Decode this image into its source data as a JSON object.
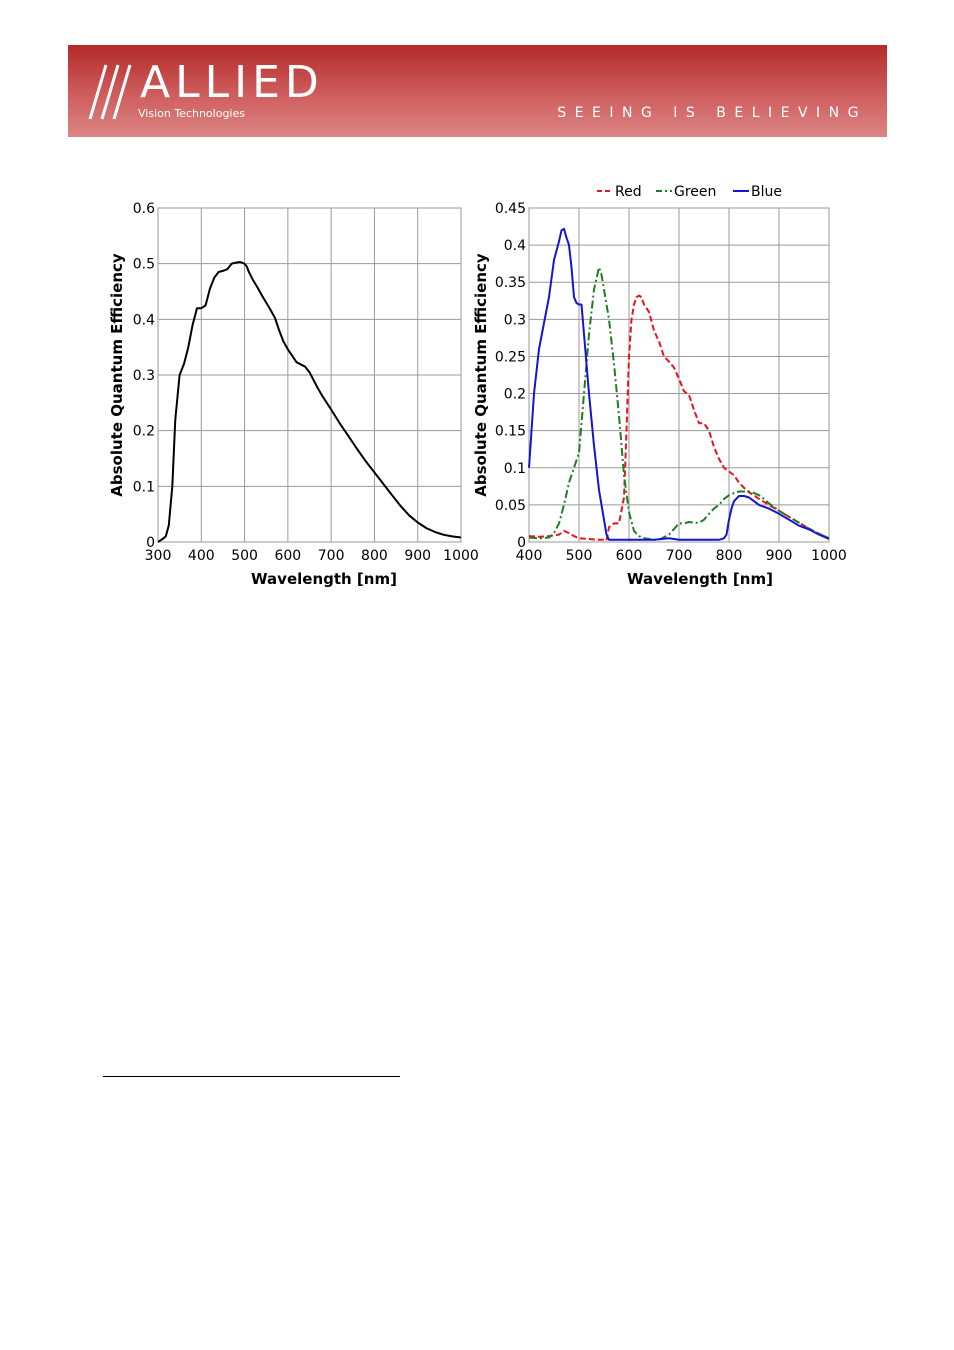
{
  "header": {
    "brand": "ALLIED",
    "subbrand": "Vision Technologies",
    "tagline": "SEEING IS BELIEVING",
    "colors": {
      "banner_dark": "#b52a2a",
      "banner_light": "#dc8585",
      "text": "#ffffff"
    }
  },
  "chart_data": [
    {
      "type": "line",
      "title": "",
      "xlabel": "Wavelength [nm]",
      "ylabel": "Absolute Quantum Efficiency",
      "xlim": [
        300,
        1000
      ],
      "ylim": [
        0,
        0.6
      ],
      "x_ticks": [
        "300",
        "400",
        "500",
        "600",
        "700",
        "800",
        "900",
        "1000"
      ],
      "y_ticks": [
        "0",
        "0.1",
        "0.2",
        "0.3",
        "0.4",
        "0.5",
        "0.6"
      ],
      "grid": true,
      "legend": "none",
      "series": [
        {
          "color": "#000000",
          "style": "solid",
          "x": [
            300,
            310,
            318,
            325,
            333,
            340,
            350,
            360,
            370,
            380,
            390,
            395,
            400,
            410,
            420,
            430,
            440,
            450,
            460,
            470,
            480,
            490,
            500,
            505,
            510,
            520,
            530,
            540,
            550,
            560,
            570,
            580,
            590,
            600,
            620,
            640,
            650,
            660,
            670,
            680,
            700,
            720,
            740,
            760,
            780,
            800,
            820,
            840,
            860,
            880,
            900,
            920,
            940,
            960,
            980,
            1000
          ],
          "values": [
            0.0,
            0.005,
            0.01,
            0.03,
            0.1,
            0.22,
            0.3,
            0.32,
            0.35,
            0.39,
            0.42,
            0.42,
            0.42,
            0.425,
            0.455,
            0.475,
            0.485,
            0.487,
            0.49,
            0.5,
            0.502,
            0.503,
            0.5,
            0.495,
            0.485,
            0.47,
            0.457,
            0.443,
            0.43,
            0.417,
            0.403,
            0.38,
            0.36,
            0.346,
            0.323,
            0.315,
            0.305,
            0.29,
            0.275,
            0.262,
            0.238,
            0.213,
            0.19,
            0.167,
            0.145,
            0.125,
            0.105,
            0.085,
            0.065,
            0.048,
            0.035,
            0.025,
            0.018,
            0.013,
            0.01,
            0.008
          ]
        }
      ]
    },
    {
      "type": "line",
      "title": "",
      "xlabel": "Wavelength [nm]",
      "ylabel": "Absolute Quantum Efficiency",
      "xlim": [
        400,
        1000
      ],
      "ylim": [
        0,
        0.45
      ],
      "x_ticks": [
        "400",
        "500",
        "600",
        "700",
        "800",
        "900",
        "1000"
      ],
      "y_ticks": [
        "0",
        "0.05",
        "0.1",
        "0.15",
        "0.2",
        "0.25",
        "0.3",
        "0.35",
        "0.4",
        "0.45"
      ],
      "grid": true,
      "legend": "top",
      "series": [
        {
          "name": "Red",
          "color": "#e8141c",
          "style": "dashed",
          "x": [
            400,
            420,
            440,
            460,
            470,
            480,
            490,
            500,
            520,
            540,
            550,
            555,
            560,
            570,
            580,
            590,
            595,
            600,
            605,
            610,
            615,
            620,
            625,
            630,
            640,
            650,
            660,
            670,
            680,
            690,
            700,
            710,
            720,
            730,
            740,
            750,
            760,
            770,
            780,
            790,
            800,
            810,
            820,
            830,
            840,
            850,
            860,
            880,
            900,
            920,
            940,
            960,
            980,
            1000
          ],
          "values": [
            0.008,
            0.007,
            0.008,
            0.01,
            0.015,
            0.012,
            0.008,
            0.005,
            0.004,
            0.003,
            0.003,
            0.002,
            0.02,
            0.025,
            0.025,
            0.06,
            0.15,
            0.25,
            0.3,
            0.32,
            0.33,
            0.332,
            0.33,
            0.32,
            0.31,
            0.285,
            0.27,
            0.25,
            0.243,
            0.235,
            0.22,
            0.203,
            0.198,
            0.178,
            0.16,
            0.16,
            0.15,
            0.128,
            0.112,
            0.1,
            0.095,
            0.09,
            0.08,
            0.073,
            0.067,
            0.063,
            0.058,
            0.05,
            0.042,
            0.034,
            0.026,
            0.018,
            0.011,
            0.005
          ]
        },
        {
          "name": "Green",
          "color": "#1e7d1e",
          "style": "dashdot",
          "x": [
            400,
            420,
            440,
            450,
            460,
            470,
            480,
            490,
            500,
            510,
            520,
            530,
            540,
            545,
            550,
            560,
            570,
            580,
            590,
            600,
            610,
            620,
            630,
            640,
            650,
            660,
            680,
            700,
            710,
            720,
            730,
            740,
            750,
            760,
            770,
            780,
            790,
            800,
            810,
            820,
            830,
            840,
            850,
            860,
            870,
            880,
            900,
            920,
            940,
            960,
            980,
            1000
          ],
          "values": [
            0.006,
            0.005,
            0.006,
            0.012,
            0.025,
            0.05,
            0.08,
            0.1,
            0.12,
            0.2,
            0.28,
            0.34,
            0.37,
            0.36,
            0.34,
            0.3,
            0.24,
            0.17,
            0.09,
            0.04,
            0.015,
            0.008,
            0.005,
            0.004,
            0.003,
            0.003,
            0.01,
            0.025,
            0.025,
            0.027,
            0.026,
            0.026,
            0.03,
            0.038,
            0.045,
            0.05,
            0.058,
            0.063,
            0.066,
            0.068,
            0.068,
            0.068,
            0.066,
            0.063,
            0.058,
            0.052,
            0.042,
            0.034,
            0.026,
            0.018,
            0.011,
            0.005
          ]
        },
        {
          "name": "Blue",
          "color": "#1414d2",
          "style": "solid",
          "x": [
            400,
            410,
            420,
            440,
            450,
            460,
            465,
            470,
            475,
            480,
            485,
            490,
            495,
            500,
            505,
            510,
            520,
            530,
            540,
            550,
            555,
            560,
            600,
            650,
            680,
            700,
            720,
            740,
            760,
            780,
            790,
            795,
            800,
            805,
            810,
            820,
            830,
            840,
            850,
            860,
            880,
            900,
            920,
            940,
            960,
            980,
            1000
          ],
          "values": [
            0.1,
            0.2,
            0.26,
            0.33,
            0.38,
            0.405,
            0.42,
            0.422,
            0.41,
            0.4,
            0.37,
            0.33,
            0.322,
            0.32,
            0.32,
            0.28,
            0.2,
            0.13,
            0.07,
            0.03,
            0.01,
            0.003,
            0.003,
            0.003,
            0.005,
            0.003,
            0.003,
            0.003,
            0.003,
            0.003,
            0.005,
            0.01,
            0.03,
            0.045,
            0.055,
            0.062,
            0.062,
            0.06,
            0.055,
            0.05,
            0.045,
            0.038,
            0.03,
            0.022,
            0.017,
            0.01,
            0.004
          ]
        }
      ]
    }
  ]
}
